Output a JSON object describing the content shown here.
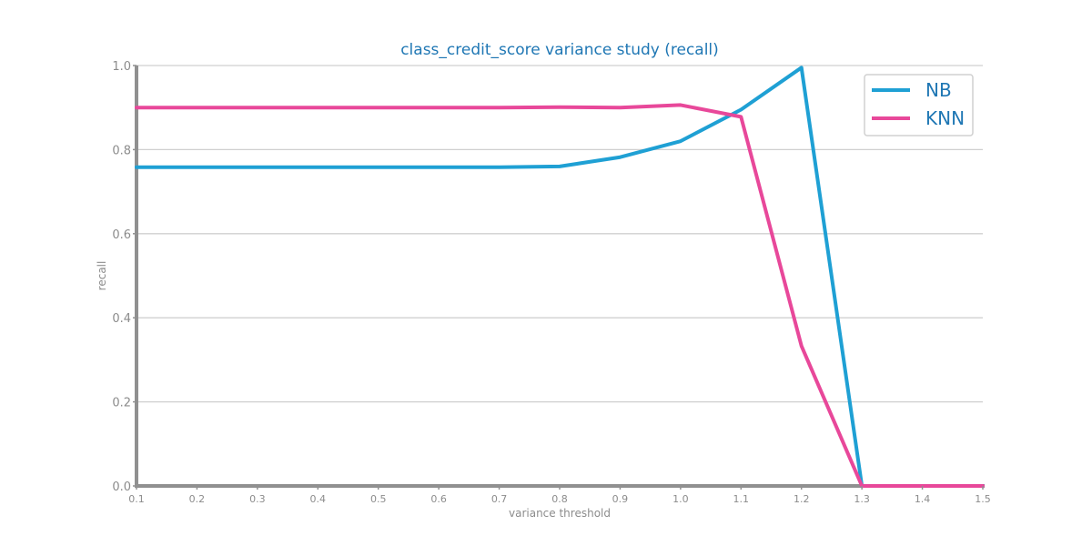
{
  "chart_data": {
    "type": "line",
    "title": "class_credit_score variance study (recall)",
    "xlabel": "variance threshold",
    "ylabel": "recall",
    "xlim": [
      0.1,
      1.5
    ],
    "ylim": [
      0.0,
      1.0
    ],
    "x_ticks": [
      "0.1",
      "0.2",
      "0.3",
      "0.4",
      "0.5",
      "0.6",
      "0.7",
      "0.8",
      "0.9",
      "1.0",
      "1.1",
      "1.2",
      "1.3",
      "1.4",
      "1.5"
    ],
    "x_tick_values": [
      0.1,
      0.2,
      0.3,
      0.4,
      0.5,
      0.6,
      0.7,
      0.8,
      0.9,
      1.0,
      1.1,
      1.2,
      1.3,
      1.4,
      1.5
    ],
    "y_ticks": [
      "0.0",
      "0.2",
      "0.4",
      "0.6",
      "0.8",
      "1.0"
    ],
    "y_tick_values": [
      0.0,
      0.2,
      0.4,
      0.6,
      0.8,
      1.0
    ],
    "grid": "horizontal",
    "legend_position": "top-right",
    "x": [
      0.1,
      0.2,
      0.3,
      0.4,
      0.5,
      0.6,
      0.7,
      0.8,
      0.9,
      1.0,
      1.1,
      1.2,
      1.3,
      1.4,
      1.5
    ],
    "series": [
      {
        "name": "NB",
        "color": "#1fa0d4",
        "values": [
          0.758,
          0.758,
          0.758,
          0.758,
          0.758,
          0.758,
          0.758,
          0.76,
          0.782,
          0.82,
          0.895,
          0.995,
          0.0,
          0.0,
          0.0
        ]
      },
      {
        "name": "KNN",
        "color": "#e8489a",
        "values": [
          0.9,
          0.9,
          0.9,
          0.9,
          0.9,
          0.9,
          0.9,
          0.901,
          0.9,
          0.906,
          0.878,
          0.333,
          0.0,
          0.0,
          0.0
        ]
      }
    ]
  }
}
